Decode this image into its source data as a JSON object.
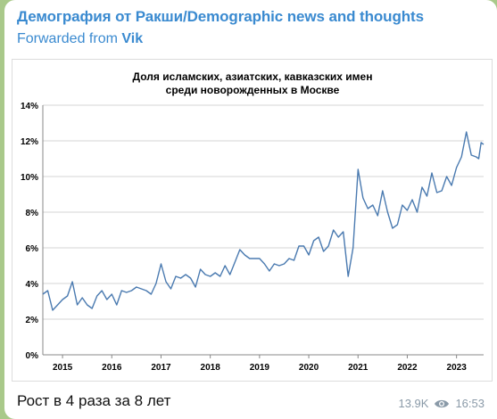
{
  "message": {
    "channel_name": "Демография от Ракши/Demographic news and thoughts",
    "forwarded_prefix": "Forwarded from ",
    "forwarded_author": "Vik",
    "caption": "Рост в 4 раза за 8 лет",
    "views": "13.9K",
    "time": "16:53",
    "accent_color": "#3a8ad0",
    "views_icon": "eye-icon"
  },
  "chart_data": {
    "type": "line",
    "title_line1": "Доля исламских, азиатских, кавказских имен",
    "title_line2": "среди новорожденных в Москве",
    "xlabel": "",
    "ylabel": "",
    "ylim": [
      0,
      14
    ],
    "y_ticks": [
      "0%",
      "2%",
      "4%",
      "6%",
      "8%",
      "10%",
      "12%",
      "14%"
    ],
    "x_range": [
      2014.6,
      2023.55
    ],
    "x_ticks": [
      {
        "label": "2015",
        "x": 2015.0
      },
      {
        "label": "2016",
        "x": 2016.0
      },
      {
        "label": "2017",
        "x": 2017.0
      },
      {
        "label": "2018",
        "x": 2018.0
      },
      {
        "label": "2019",
        "x": 2019.0
      },
      {
        "label": "2020",
        "x": 2020.0
      },
      {
        "label": "2021",
        "x": 2021.0
      },
      {
        "label": "2022",
        "x": 2022.0
      },
      {
        "label": "2023",
        "x": 2023.0
      }
    ],
    "grid": "horizontal",
    "line_color": "#4a7ab0",
    "series": [
      {
        "name": "",
        "points": [
          [
            2014.6,
            3.4
          ],
          [
            2014.7,
            3.6
          ],
          [
            2014.8,
            2.5
          ],
          [
            2014.9,
            2.8
          ],
          [
            2015.0,
            3.1
          ],
          [
            2015.1,
            3.3
          ],
          [
            2015.2,
            4.1
          ],
          [
            2015.3,
            2.8
          ],
          [
            2015.4,
            3.2
          ],
          [
            2015.5,
            2.8
          ],
          [
            2015.6,
            2.6
          ],
          [
            2015.7,
            3.3
          ],
          [
            2015.8,
            3.6
          ],
          [
            2015.9,
            3.1
          ],
          [
            2016.0,
            3.4
          ],
          [
            2016.1,
            2.8
          ],
          [
            2016.2,
            3.6
          ],
          [
            2016.3,
            3.5
          ],
          [
            2016.4,
            3.6
          ],
          [
            2016.5,
            3.8
          ],
          [
            2016.6,
            3.7
          ],
          [
            2016.7,
            3.6
          ],
          [
            2016.8,
            3.4
          ],
          [
            2016.9,
            4.0
          ],
          [
            2017.0,
            5.1
          ],
          [
            2017.1,
            4.1
          ],
          [
            2017.2,
            3.7
          ],
          [
            2017.3,
            4.4
          ],
          [
            2017.4,
            4.3
          ],
          [
            2017.5,
            4.5
          ],
          [
            2017.6,
            4.3
          ],
          [
            2017.7,
            3.8
          ],
          [
            2017.8,
            4.8
          ],
          [
            2017.9,
            4.5
          ],
          [
            2018.0,
            4.4
          ],
          [
            2018.1,
            4.6
          ],
          [
            2018.2,
            4.4
          ],
          [
            2018.3,
            5.0
          ],
          [
            2018.4,
            4.5
          ],
          [
            2018.5,
            5.2
          ],
          [
            2018.6,
            5.9
          ],
          [
            2018.7,
            5.6
          ],
          [
            2018.8,
            5.4
          ],
          [
            2018.9,
            5.4
          ],
          [
            2019.0,
            5.4
          ],
          [
            2019.1,
            5.1
          ],
          [
            2019.2,
            4.7
          ],
          [
            2019.3,
            5.1
          ],
          [
            2019.4,
            5.0
          ],
          [
            2019.5,
            5.1
          ],
          [
            2019.6,
            5.4
          ],
          [
            2019.7,
            5.3
          ],
          [
            2019.8,
            6.1
          ],
          [
            2019.9,
            6.1
          ],
          [
            2020.0,
            5.6
          ],
          [
            2020.1,
            6.4
          ],
          [
            2020.2,
            6.6
          ],
          [
            2020.3,
            5.8
          ],
          [
            2020.4,
            6.1
          ],
          [
            2020.5,
            7.0
          ],
          [
            2020.6,
            6.6
          ],
          [
            2020.7,
            6.9
          ],
          [
            2020.8,
            4.4
          ],
          [
            2020.9,
            6.0
          ],
          [
            2021.0,
            10.4
          ],
          [
            2021.1,
            8.8
          ],
          [
            2021.2,
            8.2
          ],
          [
            2021.3,
            8.4
          ],
          [
            2021.4,
            7.8
          ],
          [
            2021.5,
            9.2
          ],
          [
            2021.6,
            8.0
          ],
          [
            2021.7,
            7.1
          ],
          [
            2021.8,
            7.3
          ],
          [
            2021.9,
            8.4
          ],
          [
            2022.0,
            8.1
          ],
          [
            2022.1,
            8.7
          ],
          [
            2022.2,
            8.0
          ],
          [
            2022.3,
            9.4
          ],
          [
            2022.4,
            8.9
          ],
          [
            2022.5,
            10.2
          ],
          [
            2022.6,
            9.1
          ],
          [
            2022.7,
            9.2
          ],
          [
            2022.8,
            10.0
          ],
          [
            2022.9,
            9.5
          ],
          [
            2023.0,
            10.5
          ],
          [
            2023.1,
            11.1
          ],
          [
            2023.2,
            12.5
          ],
          [
            2023.3,
            11.2
          ],
          [
            2023.4,
            11.1
          ],
          [
            2023.45,
            11.0
          ],
          [
            2023.5,
            11.9
          ],
          [
            2023.55,
            11.8
          ]
        ]
      }
    ]
  }
}
